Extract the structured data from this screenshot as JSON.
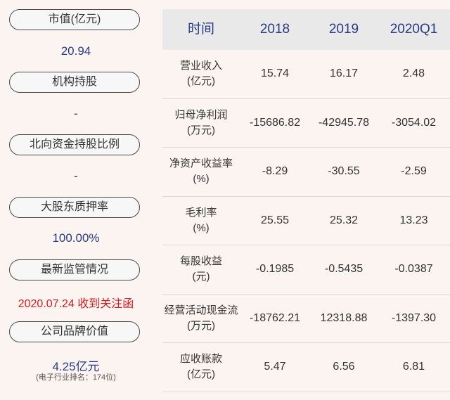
{
  "left": {
    "items": [
      {
        "label": "市值(亿元)",
        "value": "20.94"
      },
      {
        "label": "机构持股",
        "value": "-"
      },
      {
        "label": "北向资金持股比例",
        "value": "-"
      },
      {
        "label": "大股东质押率",
        "value": "100.00%"
      },
      {
        "label": "最新监管情况",
        "value": "2020.07.24 收到关注函"
      },
      {
        "label": "公司品牌价值",
        "value": "4.25亿元",
        "note": "(电子行业排名：174位)"
      }
    ]
  },
  "table": {
    "headers": [
      "时间",
      "2018",
      "2019",
      "2020Q1"
    ],
    "rows": [
      {
        "name": "营业收入",
        "unit": "(亿元)",
        "values": [
          "15.74",
          "16.17",
          "2.48"
        ]
      },
      {
        "name": "归母净利润",
        "unit": "(万元)",
        "values": [
          "-15686.82",
          "-42945.78",
          "-3054.02"
        ]
      },
      {
        "name": "净资产收益率",
        "unit": "(%)",
        "values": [
          "-8.29",
          "-30.55",
          "-2.59"
        ]
      },
      {
        "name": "毛利率",
        "unit": "(%)",
        "values": [
          "25.55",
          "25.32",
          "13.23"
        ]
      },
      {
        "name": "每股收益",
        "unit": "(元)",
        "values": [
          "-0.1985",
          "-0.5435",
          "-0.0387"
        ]
      },
      {
        "name": "经营活动现金流",
        "unit": "(万元)",
        "values": [
          "-18762.21",
          "12318.88",
          "-1397.30"
        ]
      },
      {
        "name": "应收账款",
        "unit": "(亿元)",
        "values": [
          "5.47",
          "6.56",
          "6.81"
        ]
      }
    ]
  },
  "colors": {
    "accent": "#2b3b83",
    "alert": "#d31b1b",
    "background": "#fbf4f1"
  }
}
